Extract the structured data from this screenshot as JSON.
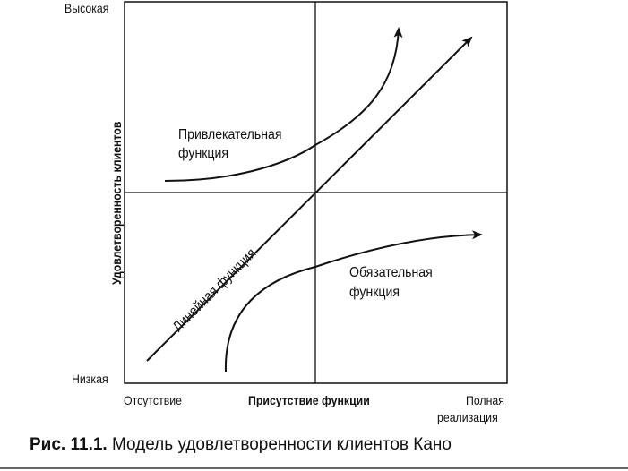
{
  "y_axis": {
    "label": "Удовлетворенность клиентов",
    "high": "Высокая",
    "low": "Низкая"
  },
  "x_axis": {
    "label": "Присутствие функции",
    "left": "Отсутствие",
    "right_line1": "Полная",
    "right_line2": "реализация"
  },
  "curves": {
    "attractive": {
      "line1": "Привлекательная",
      "line2": "функция"
    },
    "linear": {
      "label": "Линейная функция"
    },
    "must_be": {
      "line1": "Обязательная",
      "line2": "функция"
    }
  },
  "caption": {
    "number": "Рис. 11.1.",
    "text": "Модель удовлетворенности клиентов Кано"
  }
}
